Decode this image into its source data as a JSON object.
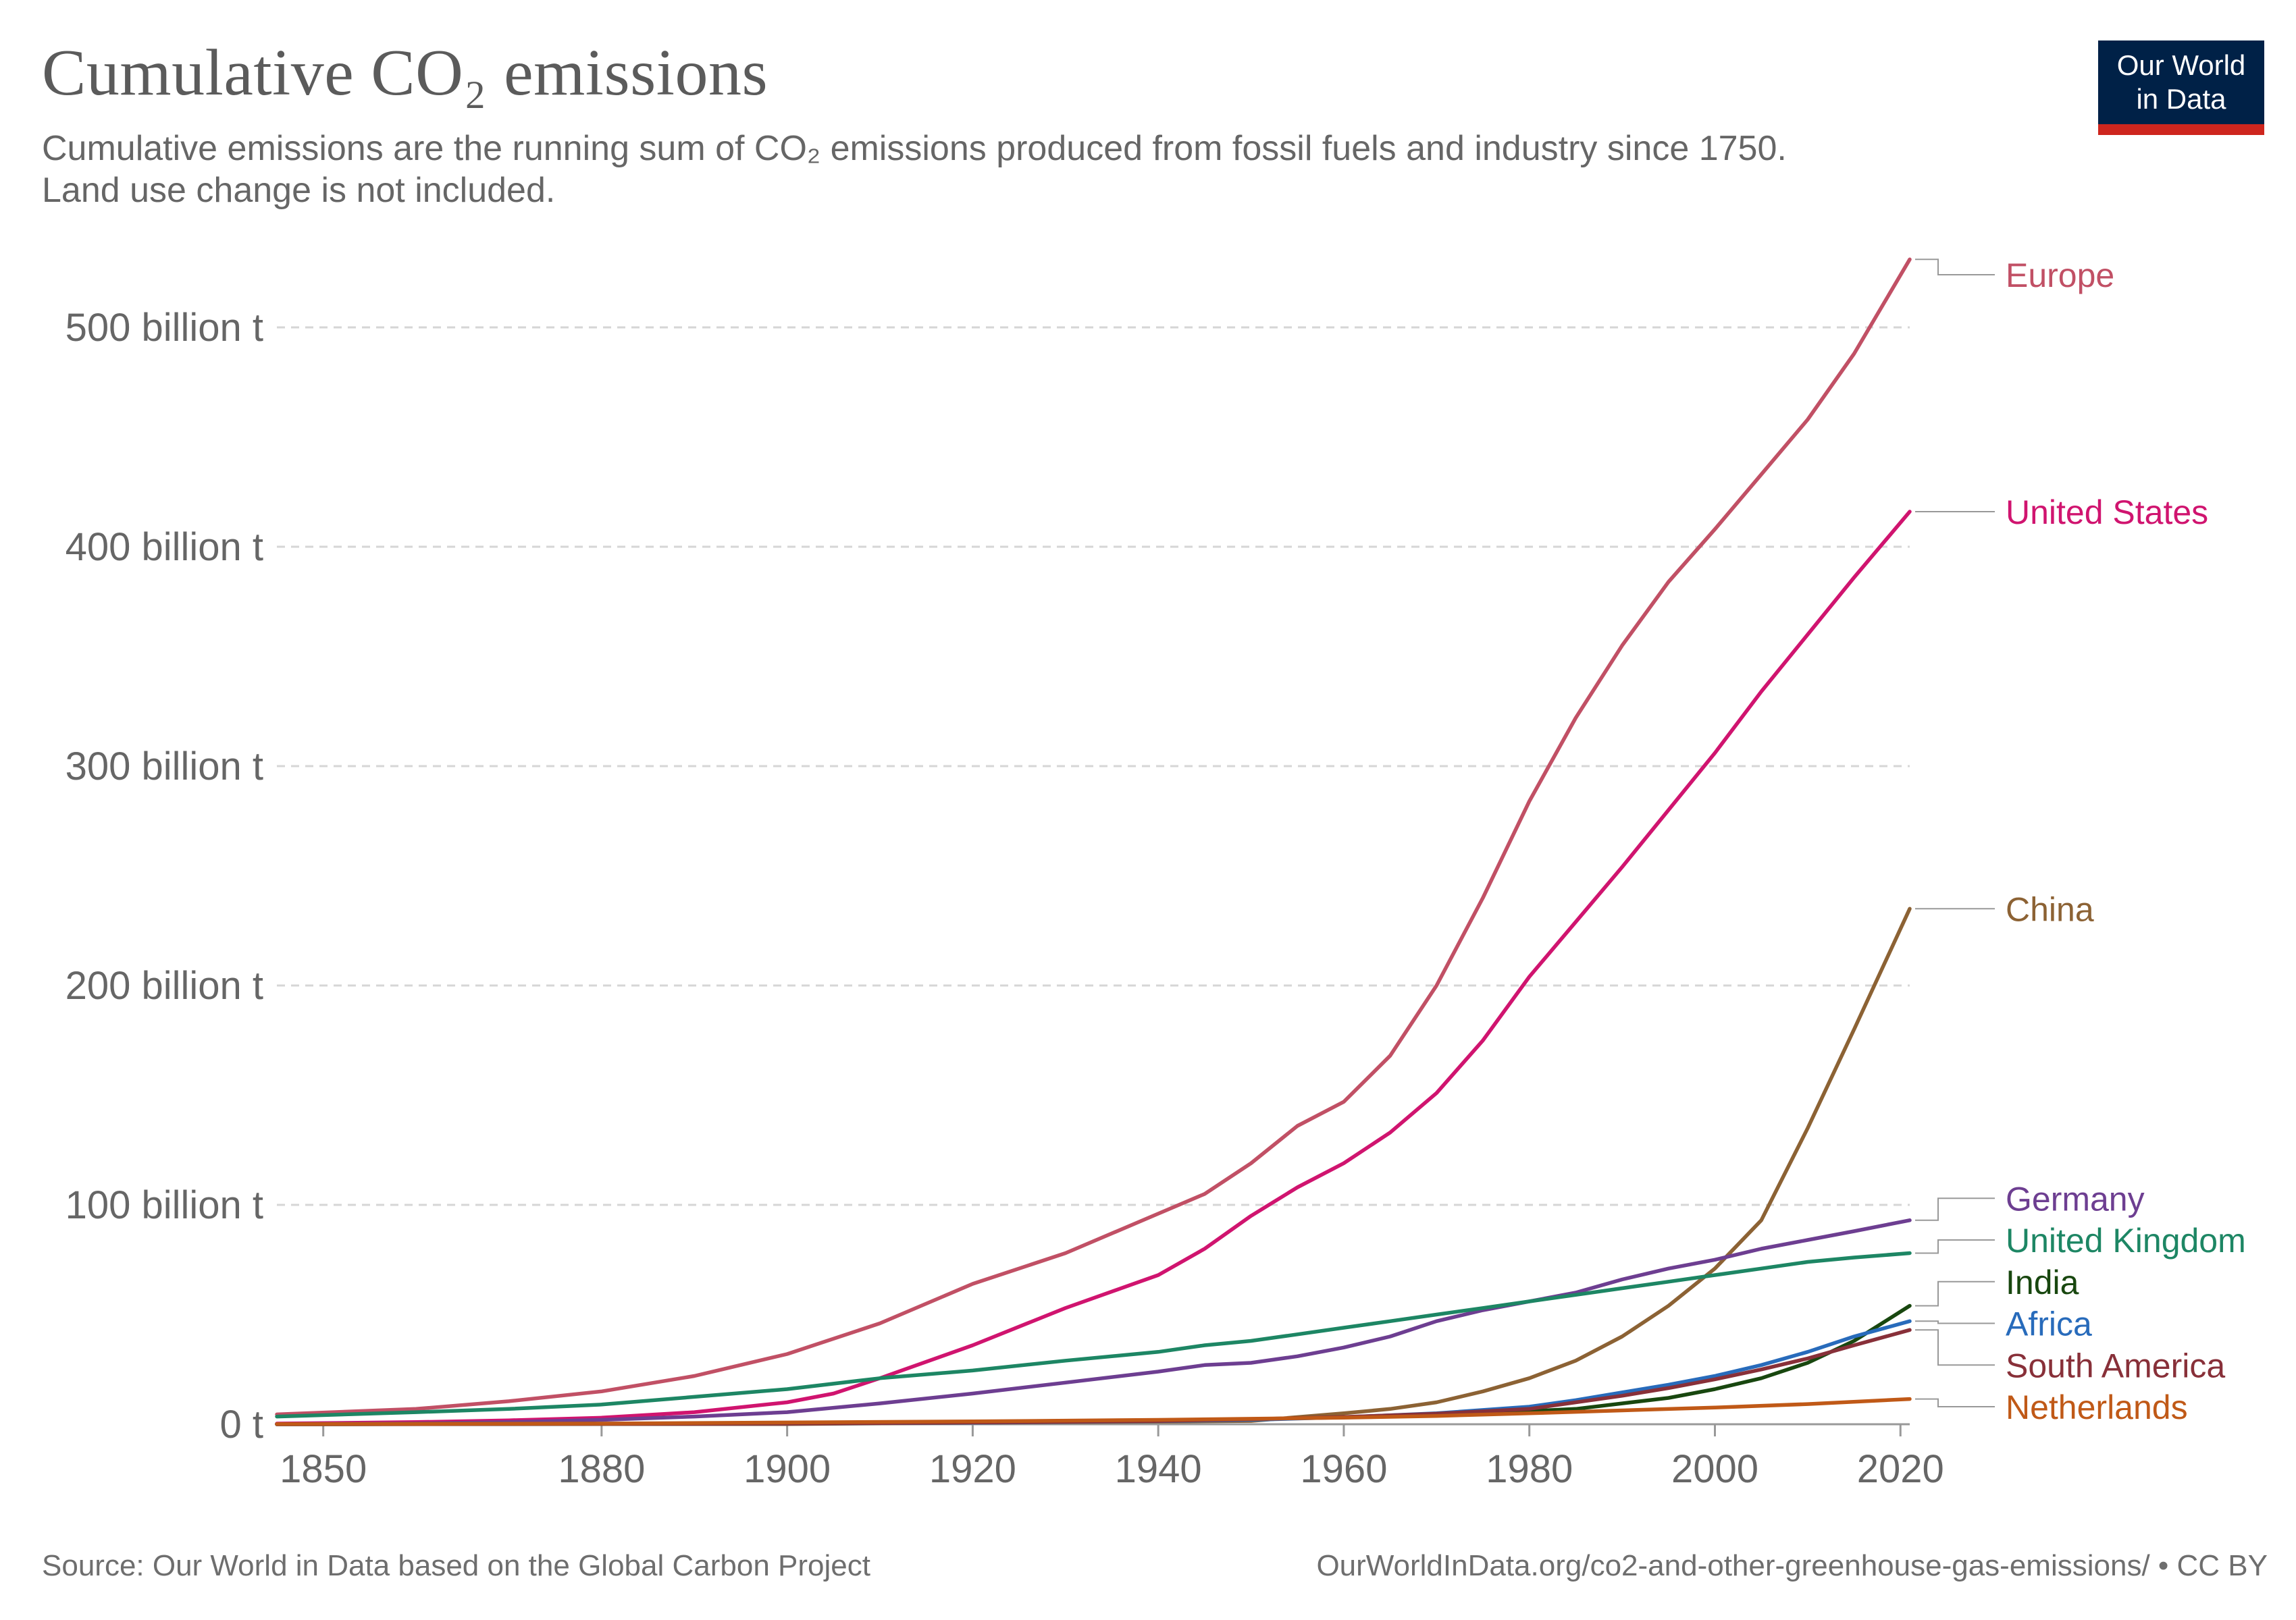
{
  "header": {
    "title": "Cumulative CO₂ emissions",
    "subtitle_line1": "Cumulative emissions are the running sum of CO₂ emissions produced from fossil fuels and industry since 1750.",
    "subtitle_line2": "Land use change is not included."
  },
  "logo": {
    "line1": "Our World",
    "line2": "in Data",
    "bg_color": "#002147",
    "bar_color": "#ce261e"
  },
  "footer": {
    "source": "Source: Our World in Data based on the Global Carbon Project",
    "url": "OurWorldInData.org/co2-and-other-greenhouse-gas-emissions/ • CC BY"
  },
  "chart_data": {
    "type": "line",
    "title": "Cumulative CO₂ emissions",
    "xlabel": "",
    "ylabel": "",
    "xlim": [
      1845,
      2021
    ],
    "ylim": [
      0,
      530
    ],
    "grid": true,
    "legend": "right (direct labels)",
    "x_ticks": [
      1850,
      1880,
      1900,
      1920,
      1940,
      1960,
      1980,
      2000,
      2020
    ],
    "y_ticks": [
      {
        "value": 0,
        "label": "0 t"
      },
      {
        "value": 100,
        "label": "100 billion t"
      },
      {
        "value": 200,
        "label": "200 billion t"
      },
      {
        "value": 300,
        "label": "300 billion t"
      },
      {
        "value": 400,
        "label": "400 billion t"
      },
      {
        "value": 500,
        "label": "500 billion t"
      }
    ],
    "series": [
      {
        "name": "Europe",
        "color": "#c15065",
        "points": [
          [
            1845,
            4.5
          ],
          [
            1860,
            7
          ],
          [
            1870,
            10.5
          ],
          [
            1880,
            15
          ],
          [
            1890,
            22
          ],
          [
            1900,
            32
          ],
          [
            1910,
            46
          ],
          [
            1920,
            64
          ],
          [
            1930,
            78
          ],
          [
            1940,
            96
          ],
          [
            1945,
            105
          ],
          [
            1950,
            119
          ],
          [
            1955,
            136
          ],
          [
            1960,
            147
          ],
          [
            1965,
            168
          ],
          [
            1970,
            200
          ],
          [
            1975,
            240
          ],
          [
            1980,
            284
          ],
          [
            1985,
            322
          ],
          [
            1990,
            355
          ],
          [
            1995,
            384
          ],
          [
            2000,
            408
          ],
          [
            2005,
            433
          ],
          [
            2010,
            458
          ],
          [
            2015,
            488
          ],
          [
            2021,
            531
          ]
        ]
      },
      {
        "name": "United States",
        "color": "#d0146f",
        "points": [
          [
            1845,
            0.3
          ],
          [
            1860,
            1
          ],
          [
            1870,
            1.8
          ],
          [
            1880,
            3
          ],
          [
            1890,
            5.5
          ],
          [
            1900,
            10
          ],
          [
            1905,
            14
          ],
          [
            1910,
            21
          ],
          [
            1920,
            36
          ],
          [
            1930,
            53
          ],
          [
            1940,
            68
          ],
          [
            1945,
            80
          ],
          [
            1950,
            95
          ],
          [
            1955,
            108
          ],
          [
            1960,
            119
          ],
          [
            1965,
            133
          ],
          [
            1970,
            151
          ],
          [
            1975,
            175
          ],
          [
            1980,
            204
          ],
          [
            1985,
            229
          ],
          [
            1990,
            254
          ],
          [
            1995,
            280
          ],
          [
            2000,
            306
          ],
          [
            2005,
            334
          ],
          [
            2010,
            360
          ],
          [
            2015,
            386
          ],
          [
            2021,
            416
          ]
        ]
      },
      {
        "name": "China",
        "color": "#8c6234",
        "points": [
          [
            1845,
            0
          ],
          [
            1900,
            0.1
          ],
          [
            1950,
            1.5
          ],
          [
            1960,
            5
          ],
          [
            1965,
            7
          ],
          [
            1970,
            10
          ],
          [
            1975,
            15
          ],
          [
            1980,
            21
          ],
          [
            1985,
            29
          ],
          [
            1990,
            40
          ],
          [
            1995,
            54
          ],
          [
            2000,
            71
          ],
          [
            2005,
            93
          ],
          [
            2010,
            135
          ],
          [
            2015,
            180
          ],
          [
            2021,
            235
          ]
        ]
      },
      {
        "name": "Germany",
        "color": "#6d3e91",
        "points": [
          [
            1845,
            0.1
          ],
          [
            1860,
            0.4
          ],
          [
            1870,
            1
          ],
          [
            1880,
            2
          ],
          [
            1890,
            3.5
          ],
          [
            1900,
            5.5
          ],
          [
            1910,
            9.5
          ],
          [
            1920,
            14
          ],
          [
            1930,
            19
          ],
          [
            1940,
            24
          ],
          [
            1945,
            27
          ],
          [
            1950,
            28
          ],
          [
            1955,
            31
          ],
          [
            1960,
            35
          ],
          [
            1965,
            40
          ],
          [
            1970,
            47
          ],
          [
            1975,
            52
          ],
          [
            1980,
            56
          ],
          [
            1985,
            60
          ],
          [
            1990,
            66
          ],
          [
            1995,
            71
          ],
          [
            2000,
            75
          ],
          [
            2005,
            80
          ],
          [
            2010,
            84
          ],
          [
            2015,
            88
          ],
          [
            2021,
            93
          ]
        ]
      },
      {
        "name": "United Kingdom",
        "color": "#1d8664",
        "points": [
          [
            1845,
            3.5
          ],
          [
            1860,
            5.5
          ],
          [
            1870,
            7
          ],
          [
            1880,
            9
          ],
          [
            1890,
            12.5
          ],
          [
            1900,
            16
          ],
          [
            1910,
            21
          ],
          [
            1920,
            24.5
          ],
          [
            1930,
            29
          ],
          [
            1940,
            33
          ],
          [
            1945,
            36
          ],
          [
            1950,
            38
          ],
          [
            1955,
            41
          ],
          [
            1960,
            44
          ],
          [
            1965,
            47
          ],
          [
            1970,
            50
          ],
          [
            1975,
            53
          ],
          [
            1980,
            56
          ],
          [
            1985,
            59
          ],
          [
            1990,
            62
          ],
          [
            1995,
            65
          ],
          [
            2000,
            68
          ],
          [
            2005,
            71
          ],
          [
            2010,
            74
          ],
          [
            2015,
            76
          ],
          [
            2021,
            78
          ]
        ]
      },
      {
        "name": "India",
        "color": "#18470f",
        "points": [
          [
            1845,
            0
          ],
          [
            1900,
            0.4
          ],
          [
            1920,
            0.9
          ],
          [
            1940,
            1.6
          ],
          [
            1950,
            2.3
          ],
          [
            1960,
            3.2
          ],
          [
            1970,
            4.3
          ],
          [
            1980,
            6
          ],
          [
            1985,
            7
          ],
          [
            1990,
            9.5
          ],
          [
            1995,
            12
          ],
          [
            2000,
            16
          ],
          [
            2005,
            21
          ],
          [
            2010,
            28
          ],
          [
            2015,
            38
          ],
          [
            2021,
            54
          ]
        ]
      },
      {
        "name": "Africa",
        "color": "#286bbb",
        "points": [
          [
            1845,
            0
          ],
          [
            1900,
            0.3
          ],
          [
            1920,
            0.7
          ],
          [
            1940,
            1.4
          ],
          [
            1950,
            2
          ],
          [
            1960,
            3.2
          ],
          [
            1970,
            5
          ],
          [
            1980,
            8
          ],
          [
            1985,
            11
          ],
          [
            1990,
            14.5
          ],
          [
            1995,
            18
          ],
          [
            2000,
            22
          ],
          [
            2005,
            27
          ],
          [
            2010,
            33
          ],
          [
            2015,
            40
          ],
          [
            2021,
            47
          ]
        ]
      },
      {
        "name": "South America",
        "color": "#883039",
        "points": [
          [
            1845,
            0
          ],
          [
            1900,
            0.3
          ],
          [
            1920,
            0.8
          ],
          [
            1940,
            1.5
          ],
          [
            1950,
            2.3
          ],
          [
            1960,
            3.3
          ],
          [
            1970,
            4.8
          ],
          [
            1980,
            7
          ],
          [
            1985,
            10
          ],
          [
            1990,
            13
          ],
          [
            1995,
            16.5
          ],
          [
            2000,
            20.5
          ],
          [
            2005,
            25
          ],
          [
            2010,
            30
          ],
          [
            2015,
            36
          ],
          [
            2021,
            43
          ]
        ]
      },
      {
        "name": "Netherlands",
        "color": "#c05917",
        "points": [
          [
            1845,
            0.05
          ],
          [
            1880,
            0.3
          ],
          [
            1900,
            0.8
          ],
          [
            1920,
            1.3
          ],
          [
            1940,
            2
          ],
          [
            1950,
            2.5
          ],
          [
            1960,
            3
          ],
          [
            1970,
            3.8
          ],
          [
            1980,
            5
          ],
          [
            1990,
            6.3
          ],
          [
            2000,
            7.6
          ],
          [
            2010,
            9.2
          ],
          [
            2021,
            11.5
          ]
        ]
      }
    ],
    "labels": [
      {
        "series": "Europe",
        "text": "Europe",
        "color": "#c15065",
        "label_y": 524
      },
      {
        "series": "United States",
        "text": "United States",
        "color": "#d0146f",
        "label_y": 416
      },
      {
        "series": "China",
        "text": "China",
        "color": "#8c6234",
        "label_y": 235
      },
      {
        "series": "Germany",
        "text": "Germany",
        "color": "#6d3e91",
        "label_y": 103
      },
      {
        "series": "United Kingdom",
        "text": "United Kingdom",
        "color": "#1d8664",
        "label_y": 84
      },
      {
        "series": "India",
        "text": "India",
        "color": "#18470f",
        "label_y": 65
      },
      {
        "series": "Africa",
        "text": "Africa",
        "color": "#286bbb",
        "label_y": 46
      },
      {
        "series": "South America",
        "text": "South America",
        "color": "#883039",
        "label_y": 27
      },
      {
        "series": "Netherlands",
        "text": "Netherlands",
        "color": "#c05917",
        "label_y": 8
      }
    ]
  }
}
